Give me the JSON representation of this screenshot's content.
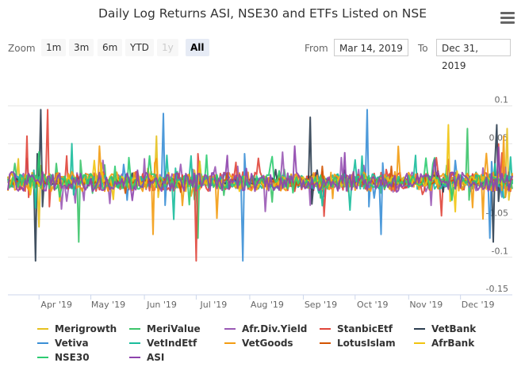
{
  "title": "Daily Log Returns ASI, NSE30 and ETFs Listed on NSE",
  "zoom": {
    "label": "Zoom",
    "buttons": [
      "1m",
      "3m",
      "6m",
      "YTD",
      "1y",
      "All"
    ],
    "disabled": "1y",
    "active": "All"
  },
  "range": {
    "from_label": "From",
    "from_value": "Mar 14, 2019",
    "to_label": "To",
    "to_value": "Dec 31, 2019"
  },
  "icons": {
    "menu": "hamburger-menu-icon"
  },
  "chart_data": {
    "type": "line",
    "title": "Daily Log Returns ASI, NSE30 and ETFs Listed on NSE",
    "xlabel": "",
    "ylabel": "",
    "x_start": "2019-03-14",
    "x_end": "2019-12-31",
    "x_ticks": [
      "Apr '19",
      "May '19",
      "Jun '19",
      "Jul '19",
      "Aug '19",
      "Sep '19",
      "Oct '19",
      "Nov '19",
      "Dec '19"
    ],
    "y_ticks": [
      0.1,
      0.05,
      0,
      -0.05,
      -0.1,
      -0.15
    ],
    "y_tick_labels": [
      "0.1",
      "0.05",
      "",
      "-0.05",
      "-0.1",
      "-0.15"
    ],
    "ylim": [
      -0.15,
      0.15
    ],
    "grid": true,
    "legend_position": "bottom",
    "series": [
      {
        "name": "Merigrowth",
        "color": "#e6c11f",
        "spikes": [
          [
            "2019-03-20",
            0.03
          ],
          [
            "2019-04-01",
            -0.06
          ],
          [
            "2019-06-08",
            0.06
          ],
          [
            "2019-12-28",
            0.07
          ]
        ]
      },
      {
        "name": "MeriValue",
        "color": "#3cc46a",
        "spikes": [
          [
            "2019-04-24",
            -0.08
          ],
          [
            "2019-07-02",
            -0.075
          ],
          [
            "2019-12-05",
            0.07
          ]
        ]
      },
      {
        "name": "Afr.Div.Yield",
        "color": "#9a59b5",
        "spikes": [
          [
            "2019-06-01",
            0.03
          ],
          [
            "2019-07-25",
            0.02
          ]
        ]
      },
      {
        "name": "StanbicEtf",
        "color": "#e0453a",
        "spikes": [
          [
            "2019-03-25",
            0.06
          ],
          [
            "2019-04-06",
            0.095
          ],
          [
            "2019-07-01",
            -0.105
          ]
        ]
      },
      {
        "name": "VetBank",
        "color": "#2c3e50",
        "spikes": [
          [
            "2019-03-30",
            -0.105
          ],
          [
            "2019-04-02",
            0.095
          ],
          [
            "2019-09-05",
            0.085
          ],
          [
            "2019-12-20",
            -0.08
          ],
          [
            "2019-12-22",
            0.075
          ]
        ]
      },
      {
        "name": "Vetiva",
        "color": "#3a8fd6",
        "spikes": [
          [
            "2019-06-12",
            0.09
          ],
          [
            "2019-07-28",
            -0.105
          ],
          [
            "2019-10-08",
            0.095
          ],
          [
            "2019-10-16",
            -0.07
          ],
          [
            "2019-12-18",
            -0.075
          ]
        ]
      },
      {
        "name": "VetIndEtf",
        "color": "#1abc9c",
        "spikes": [
          [
            "2019-04-20",
            0.05
          ],
          [
            "2019-06-18",
            -0.05
          ]
        ]
      },
      {
        "name": "VetGoods",
        "color": "#f39c12",
        "spikes": [
          [
            "2019-06-06",
            -0.07
          ],
          [
            "2019-12-26",
            0.06
          ]
        ]
      },
      {
        "name": "LotusIslam",
        "color": "#d35400",
        "spikes": [
          [
            "2019-09-12",
            0.02
          ],
          [
            "2019-10-22",
            0.02
          ]
        ]
      },
      {
        "name": "AfrBank",
        "color": "#f1c40f",
        "spikes": [
          [
            "2019-11-24",
            0.075
          ],
          [
            "2019-11-28",
            -0.04
          ]
        ]
      },
      {
        "name": "NSE30",
        "color": "#2ecc71",
        "spikes": [
          [
            "2019-05-15",
            0.02
          ]
        ]
      },
      {
        "name": "ASI",
        "color": "#8e44ad",
        "spikes": [
          [
            "2019-05-28",
            0.015
          ]
        ]
      }
    ]
  }
}
